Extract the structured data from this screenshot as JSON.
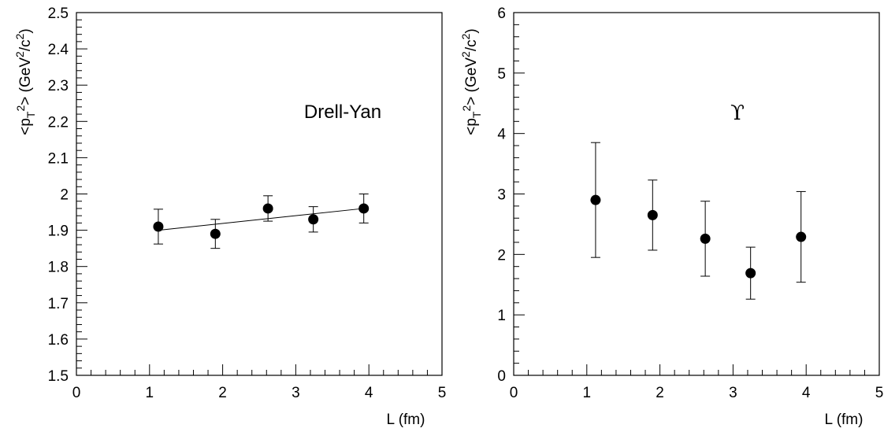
{
  "chart_data": [
    {
      "type": "scatter",
      "annotation": "Drell-Yan",
      "xlabel": "L (fm)",
      "ylabel": "<p_T^2> (GeV^2/c^2)",
      "xlim": [
        0,
        5
      ],
      "ylim": [
        1.5,
        2.5
      ],
      "x_ticks": [
        0,
        1,
        2,
        3,
        4,
        5
      ],
      "y_ticks": [
        1.5,
        1.6,
        1.7,
        1.8,
        1.9,
        2.0,
        2.1,
        2.2,
        2.3,
        2.4,
        2.5
      ],
      "x_tick_labels": [
        "0",
        "1",
        "2",
        "3",
        "4",
        "5"
      ],
      "y_tick_labels": [
        "1.5",
        "1.6",
        "1.7",
        "1.8",
        "1.9",
        "2",
        "2.1",
        "2.2",
        "2.3",
        "2.4",
        "2.5"
      ],
      "series": [
        {
          "x": [
            1.12,
            1.9,
            2.62,
            3.24,
            3.93
          ],
          "y": [
            1.91,
            1.89,
            1.96,
            1.93,
            1.96
          ],
          "yerr": [
            0.048,
            0.04,
            0.035,
            0.035,
            0.04
          ]
        }
      ],
      "fit_line": {
        "x": [
          1.12,
          3.93
        ],
        "y": [
          1.9,
          1.96
        ]
      },
      "grid": false,
      "legend": "none"
    },
    {
      "type": "scatter",
      "annotation": "ϒ",
      "xlabel": "L (fm)",
      "ylabel": "<p_T^2> (GeV^2/c^2)",
      "xlim": [
        0,
        5
      ],
      "ylim": [
        0,
        6
      ],
      "x_ticks": [
        0,
        1,
        2,
        3,
        4,
        5
      ],
      "y_ticks": [
        0,
        1,
        2,
        3,
        4,
        5,
        6
      ],
      "x_tick_labels": [
        "0",
        "1",
        "2",
        "3",
        "4",
        "5"
      ],
      "y_tick_labels": [
        "0",
        "1",
        "2",
        "3",
        "4",
        "5",
        "6"
      ],
      "series": [
        {
          "x": [
            1.12,
            1.9,
            2.62,
            3.24,
            3.93
          ],
          "y": [
            2.9,
            2.65,
            2.26,
            1.69,
            2.29
          ],
          "yerr": [
            0.95,
            0.58,
            0.62,
            0.43,
            0.75
          ]
        }
      ],
      "grid": false,
      "legend": "none"
    }
  ]
}
